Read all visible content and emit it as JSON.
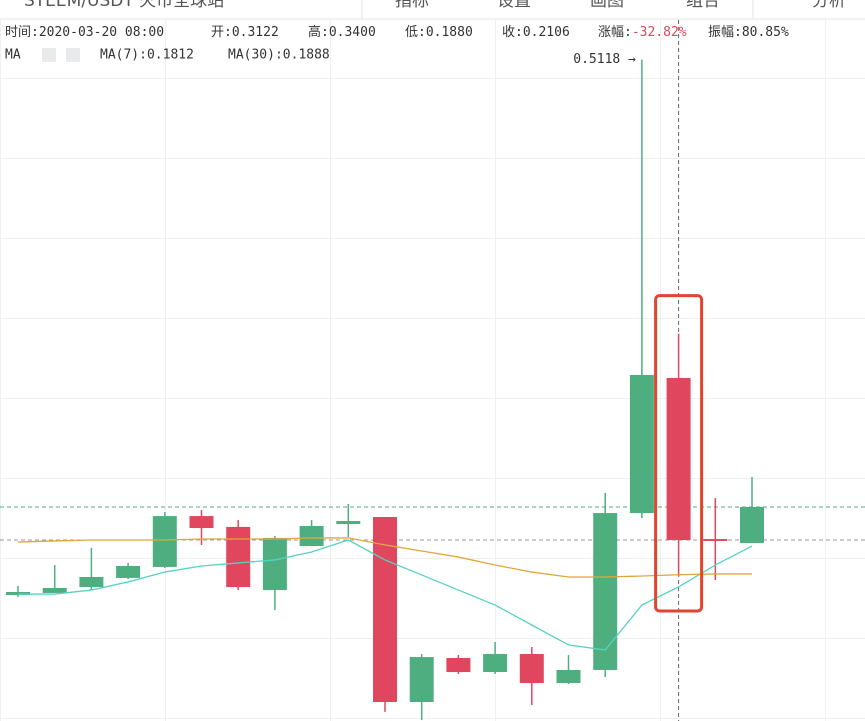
{
  "toolbar": [
    "STEEM/USDT 火币全球站",
    "指标",
    "设置",
    "画图",
    "组合",
    "分析"
  ],
  "info": [
    {
      "label": "时间:",
      "value": "2020-03-20 08:00"
    },
    {
      "label": "开:",
      "value": "0.3122"
    },
    {
      "label": "高:",
      "value": "0.3400"
    },
    {
      "label": "低:",
      "value": "0.1880"
    },
    {
      "label": "收:",
      "value": "0.2106"
    },
    {
      "label": "涨幅:",
      "value": "-32.82%",
      "color": "#e0475e"
    },
    {
      "label": "振幅:",
      "value": "80.85%"
    }
  ],
  "chart_data": {
    "type": "candlestick",
    "indicator": "MA",
    "annotation": "0.5118 →",
    "categories": [
      null,
      null,
      null,
      null,
      null,
      null,
      null,
      null,
      null,
      null,
      null,
      null,
      null,
      null,
      null,
      null,
      null,
      null,
      null,
      null,
      null
    ],
    "open": [
      0.1761,
      0.1774,
      0.1811,
      0.1868,
      0.1937,
      0.2256,
      0.2188,
      0.1792,
      0.2068,
      0.2206,
      0.225,
      0.109,
      0.1366,
      0.1278,
      0.1391,
      0.1209,
      0.1291,
      0.2275,
      0.3122,
      0.2112,
      0.2087
    ],
    "high": [
      0.1818,
      0.1949,
      0.2056,
      0.1962,
      0.2282,
      0.2294,
      0.2231,
      0.2131,
      0.2231,
      0.2332,
      0.225,
      0.1391,
      0.1385,
      0.1466,
      0.1435,
      0.1385,
      0.2401,
      0.5118,
      0.34,
      0.2369,
      0.2501
    ],
    "low": [
      0.1749,
      0.1774,
      0.1792,
      0.1861,
      0.193,
      0.2075,
      0.1792,
      0.1667,
      0.2068,
      0.2125,
      0.1028,
      0.0977,
      0.1266,
      0.1266,
      0.1071,
      0.1203,
      0.1247,
      0.2244,
      0.188,
      0.1855,
      0.2087
    ],
    "close": [
      0.178,
      0.1805,
      0.1874,
      0.1943,
      0.2256,
      0.2181,
      0.1811,
      0.2119,
      0.2194,
      0.2225,
      0.109,
      0.1372,
      0.1278,
      0.1391,
      0.1209,
      0.1291,
      0.2275,
      0.3141,
      0.2106,
      0.21,
      0.2313
    ],
    "up_color": "#4fae80",
    "down_color": "#e0475e",
    "highlighted": 18,
    "series": [
      {
        "name": "MA(7):0.1812",
        "color": "#57d2c0",
        "values": [
          0.1767,
          0.1767,
          0.1792,
          0.1843,
          0.1905,
          0.1943,
          0.1962,
          0.1981,
          0.2031,
          0.2106,
          0.1981,
          0.1887,
          0.1792,
          0.1698,
          0.1573,
          0.1448,
          0.1416,
          0.1698,
          0.1812,
          0.1949,
          0.2068
        ]
      },
      {
        "name": "MA(30):0.1888",
        "color": "#e2a73c",
        "values": [
          0.2093,
          0.21,
          0.2106,
          0.2106,
          0.2106,
          0.2112,
          0.2112,
          0.2112,
          0.2119,
          0.2119,
          0.2075,
          0.2037,
          0.1999,
          0.1949,
          0.1905,
          0.1874,
          0.1874,
          0.188,
          0.1888,
          0.1893,
          0.1893
        ]
      }
    ],
    "ylim": [
      0.0971,
      0.5492
    ]
  }
}
